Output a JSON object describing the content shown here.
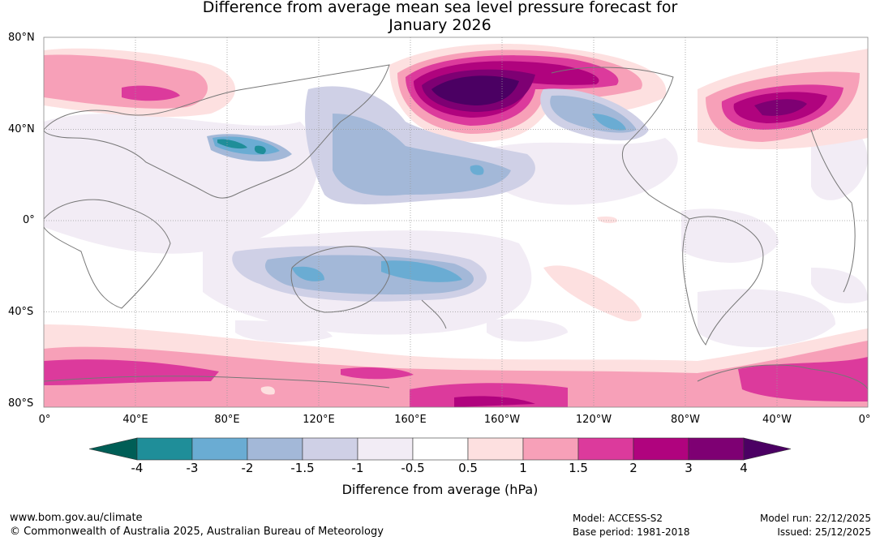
{
  "title": {
    "line1": "Difference from average mean sea level pressure forecast for",
    "line2": "January 2026"
  },
  "map": {
    "lat_labels": [
      "80°N",
      "40°N",
      "0°",
      "40°S",
      "80°S"
    ],
    "lon_labels": [
      "0°",
      "40°E",
      "80°E",
      "120°E",
      "160°E",
      "160°W",
      "120°W",
      "80°W",
      "40°W",
      "0°"
    ],
    "anomaly_regions": [
      {
        "name": "north-pacific-high",
        "value": "≥4 hPa"
      },
      {
        "name": "north-atlantic-high",
        "value": "3–4 hPa"
      },
      {
        "name": "siberia-high",
        "value": "1.5–3 hPa"
      },
      {
        "name": "southern-ocean-high",
        "value": "1.5–3 hPa"
      },
      {
        "name": "australia-low",
        "value": "-2 to -3 hPa"
      },
      {
        "name": "tibet-low",
        "value": "-3 to -4 hPa"
      },
      {
        "name": "north-pacific-low-band",
        "value": "-1 to -3 hPa"
      },
      {
        "name": "western-north-america-low",
        "value": "-1.5 to -3 hPa"
      }
    ]
  },
  "colorbar": {
    "colors": [
      "#005e56",
      "#1f8e99",
      "#6aacd3",
      "#a3b8d8",
      "#cfd0e6",
      "#f2ecf5",
      "#ffffff",
      "#fde0e0",
      "#f7a0b8",
      "#dc3a9c",
      "#b0037e",
      "#7e0073",
      "#4b0063"
    ],
    "tick_labels": [
      "-4",
      "-3",
      "-2",
      "-1.5",
      "-1",
      "-0.5",
      "0.5",
      "1",
      "1.5",
      "2",
      "3",
      "4"
    ],
    "label": "Difference from average (hPa)"
  },
  "footer": {
    "website": "www.bom.gov.au/climate",
    "copyright": "© Commonwealth of Australia 2025, Australian Bureau of Meteorology",
    "model": "Model: ACCESS-S2",
    "base_period": "Base period: 1981-2018",
    "model_run": "Model run: 22/12/2025",
    "issued": "Issued: 25/12/2025"
  }
}
